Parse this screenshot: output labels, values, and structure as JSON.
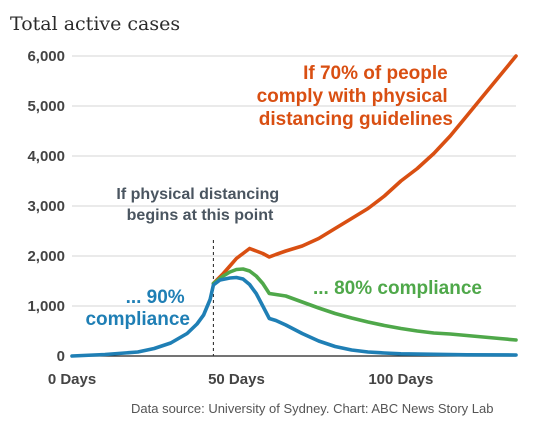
{
  "chart_data": {
    "type": "line",
    "title": "Total active cases",
    "xlabel": "",
    "ylabel": "",
    "xlim": [
      0,
      135
    ],
    "ylim": [
      0,
      6000
    ],
    "x_ticks": [
      "0 Days",
      "50 Days",
      "100 Days"
    ],
    "x_tick_values": [
      0,
      50,
      100
    ],
    "y_ticks": [
      "0",
      "1,000",
      "2,000",
      "3,000",
      "4,000",
      "5,000",
      "6,000"
    ],
    "y_tick_values": [
      0,
      1000,
      2000,
      3000,
      4000,
      5000,
      6000
    ],
    "grid": true,
    "intervention_day": 43,
    "series": [
      {
        "name": "If 70% of people comply with physical distancing guidelines",
        "color": "#d94f12",
        "x": [
          43,
          46,
          48,
          50,
          52,
          54,
          56,
          58,
          60,
          62,
          65,
          70,
          75,
          80,
          85,
          90,
          95,
          100,
          105,
          110,
          115,
          120,
          125,
          130,
          135
        ],
        "y": [
          1450,
          1650,
          1800,
          1950,
          2050,
          2150,
          2100,
          2050,
          1980,
          2030,
          2100,
          2200,
          2350,
          2550,
          2750,
          2950,
          3200,
          3500,
          3750,
          4050,
          4400,
          4800,
          5200,
          5600,
          6000
        ]
      },
      {
        "name": "80% compliance",
        "color": "#4fa84a",
        "x": [
          43,
          46,
          48,
          50,
          52,
          54,
          56,
          58,
          60,
          62,
          65,
          70,
          75,
          80,
          85,
          90,
          95,
          100,
          105,
          110,
          115,
          120,
          125,
          130,
          135
        ],
        "y": [
          1450,
          1600,
          1680,
          1730,
          1740,
          1700,
          1600,
          1450,
          1250,
          1230,
          1200,
          1080,
          960,
          850,
          760,
          680,
          610,
          550,
          500,
          460,
          440,
          410,
          380,
          350,
          320
        ]
      },
      {
        "name": "90% compliance",
        "color": "#1f7fb5",
        "x": [
          0,
          10,
          20,
          25,
          30,
          35,
          38,
          40,
          42,
          43,
          45,
          48,
          50,
          52,
          54,
          56,
          58,
          60,
          62,
          65,
          70,
          75,
          80,
          85,
          90,
          95,
          100,
          110,
          120,
          135
        ],
        "y": [
          0,
          30,
          80,
          150,
          260,
          450,
          640,
          820,
          1130,
          1420,
          1520,
          1560,
          1570,
          1540,
          1430,
          1250,
          1000,
          750,
          710,
          620,
          450,
          300,
          190,
          120,
          80,
          60,
          45,
          35,
          25,
          20
        ]
      }
    ],
    "annotations": {
      "intervention": [
        "If physical distancing",
        "begins at this point"
      ],
      "orange": [
        "If 70% of people",
        "comply with physical",
        "distancing guidelines"
      ],
      "green": [
        "... 80% compliance"
      ],
      "blue": [
        "... 90%",
        "compliance"
      ]
    },
    "source": "Data source: University of Sydney. Chart: ABC News Story Lab"
  }
}
